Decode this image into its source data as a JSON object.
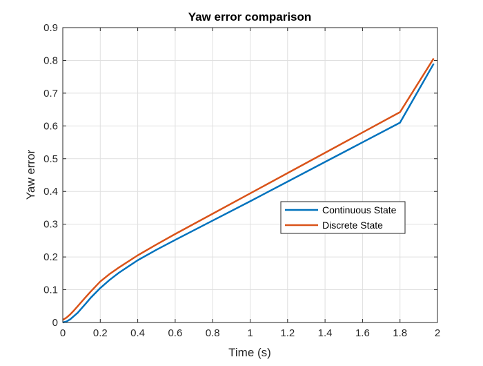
{
  "chart_data": {
    "type": "line",
    "title": "Yaw error comparison",
    "xlabel": "Time (s)",
    "ylabel": "Yaw error",
    "xlim": [
      0,
      2
    ],
    "ylim": [
      0,
      0.9
    ],
    "xticks": [
      0,
      0.2,
      0.4,
      0.6,
      0.8,
      1,
      1.2,
      1.4,
      1.6,
      1.8,
      2
    ],
    "yticks": [
      0,
      0.1,
      0.2,
      0.3,
      0.4,
      0.5,
      0.6,
      0.7,
      0.8,
      0.9
    ],
    "xtick_labels": [
      "0",
      "0.2",
      "0.4",
      "0.6",
      "0.8",
      "1",
      "1.2",
      "1.4",
      "1.6",
      "1.8",
      "2"
    ],
    "ytick_labels": [
      "0",
      "0.1",
      "0.2",
      "0.3",
      "0.4",
      "0.5",
      "0.6",
      "0.7",
      "0.8",
      "0.9"
    ],
    "grid": true,
    "legend_position": "right",
    "series": [
      {
        "name": "Continuous State",
        "color": "#0072BD",
        "x": [
          0,
          0.02,
          0.04,
          0.06,
          0.08,
          0.1,
          0.12,
          0.15,
          0.2,
          0.25,
          0.3,
          0.4,
          0.5,
          0.6,
          0.8,
          1.0,
          1.2,
          1.4,
          1.6,
          1.8,
          1.98
        ],
        "y": [
          0,
          0.003,
          0.01,
          0.02,
          0.03,
          0.043,
          0.056,
          0.076,
          0.105,
          0.13,
          0.152,
          0.19,
          0.222,
          0.252,
          0.311,
          0.37,
          0.43,
          0.49,
          0.55,
          0.61,
          0.79
        ]
      },
      {
        "name": "Discrete State",
        "color": "#D95319",
        "x": [
          0,
          0.02,
          0.04,
          0.06,
          0.08,
          0.1,
          0.12,
          0.15,
          0.2,
          0.25,
          0.3,
          0.4,
          0.5,
          0.6,
          0.8,
          1.0,
          1.2,
          1.4,
          1.6,
          1.8,
          1.98
        ],
        "y": [
          0.008,
          0.015,
          0.025,
          0.037,
          0.05,
          0.063,
          0.076,
          0.095,
          0.125,
          0.148,
          0.168,
          0.205,
          0.238,
          0.27,
          0.332,
          0.394,
          0.456,
          0.518,
          0.58,
          0.642,
          0.806
        ]
      }
    ]
  }
}
